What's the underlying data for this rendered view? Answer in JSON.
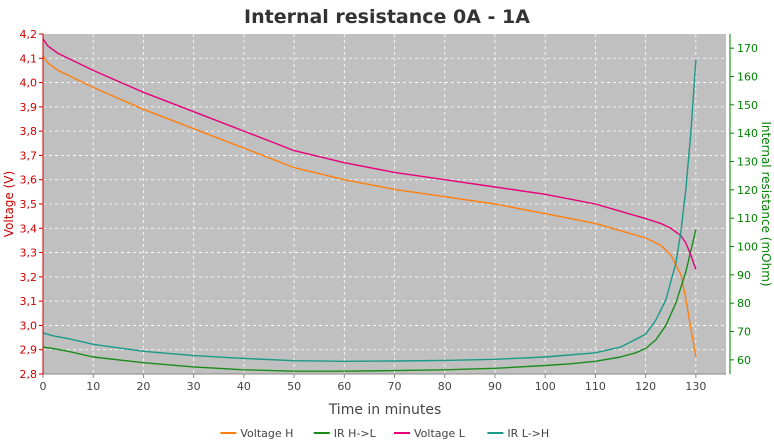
{
  "chart_data": {
    "type": "line",
    "title": "Internal resistance  0A - 1A",
    "xlabel": "Time in minutes",
    "ylabel_left": "Voltage (V)",
    "ylabel_right": "Internal resistance (mOhm)",
    "xlim": [
      0,
      136
    ],
    "ylim_left": [
      2.8,
      4.2
    ],
    "ylim_right": [
      55,
      175
    ],
    "x_ticks": [
      "0",
      "10",
      "20",
      "30",
      "40",
      "50",
      "60",
      "70",
      "80",
      "90",
      "100",
      "110",
      "120",
      "130"
    ],
    "y_left_ticks": [
      "2,8",
      "2,9",
      "3,0",
      "3,1",
      "3,2",
      "3,3",
      "3,4",
      "3,5",
      "3,6",
      "3,7",
      "3,8",
      "3,9",
      "4,0",
      "4,1",
      "4,2"
    ],
    "y_right_ticks": [
      "60",
      "70",
      "80",
      "90",
      "100",
      "110",
      "120",
      "130",
      "140",
      "150",
      "160",
      "170"
    ],
    "grid": true,
    "legend_position": "bottom",
    "colors": {
      "plot_bg": "#c0c0c0",
      "left_axis": "#cc0000",
      "right_axis": "#008000",
      "grid": "#ffffff"
    },
    "series": [
      {
        "name": "Voltage H",
        "axis": "left",
        "color": "#ff7f0e",
        "x": [
          0,
          1,
          3,
          5,
          10,
          20,
          30,
          40,
          50,
          60,
          70,
          80,
          90,
          100,
          110,
          115,
          120,
          123,
          125,
          127,
          128,
          129,
          130
        ],
        "y": [
          4.11,
          4.08,
          4.05,
          4.03,
          3.98,
          3.89,
          3.81,
          3.73,
          3.65,
          3.6,
          3.56,
          3.53,
          3.5,
          3.46,
          3.42,
          3.39,
          3.36,
          3.33,
          3.29,
          3.21,
          3.11,
          2.99,
          2.87
        ]
      },
      {
        "name": "IR H->L",
        "axis": "right",
        "color": "#1a8c1a",
        "x": [
          0,
          2,
          5,
          10,
          20,
          30,
          40,
          50,
          60,
          70,
          80,
          90,
          100,
          105,
          110,
          115,
          118,
          120,
          122,
          124,
          126,
          128,
          130
        ],
        "y": [
          64.5,
          64,
          63,
          61,
          59,
          57.5,
          56.5,
          56,
          56,
          56.2,
          56.5,
          57,
          58,
          58.6,
          59.5,
          61,
          62.5,
          64,
          67,
          72,
          80,
          91,
          106
        ]
      },
      {
        "name": "Voltage L",
        "axis": "left",
        "color": "#e6007a",
        "x": [
          0,
          1,
          3,
          5,
          10,
          20,
          30,
          40,
          50,
          60,
          70,
          80,
          90,
          100,
          110,
          115,
          120,
          123,
          125,
          127,
          128,
          129,
          130
        ],
        "y": [
          4.18,
          4.15,
          4.12,
          4.1,
          4.05,
          3.96,
          3.88,
          3.8,
          3.72,
          3.67,
          3.63,
          3.6,
          3.57,
          3.54,
          3.5,
          3.47,
          3.44,
          3.42,
          3.4,
          3.37,
          3.34,
          3.29,
          3.23
        ]
      },
      {
        "name": "IR L->H",
        "axis": "right",
        "color": "#1a9a8a",
        "x": [
          0,
          2,
          5,
          10,
          20,
          30,
          40,
          50,
          60,
          70,
          80,
          90,
          100,
          110,
          115,
          120,
          122,
          124,
          126,
          127,
          128,
          129,
          130
        ],
        "y": [
          69.5,
          68.5,
          67.5,
          65.5,
          63,
          61.5,
          60.5,
          59.7,
          59.5,
          59.6,
          59.8,
          60.2,
          61,
          62.5,
          64.5,
          69,
          74,
          81,
          94,
          105,
          120,
          140,
          166
        ]
      }
    ]
  }
}
